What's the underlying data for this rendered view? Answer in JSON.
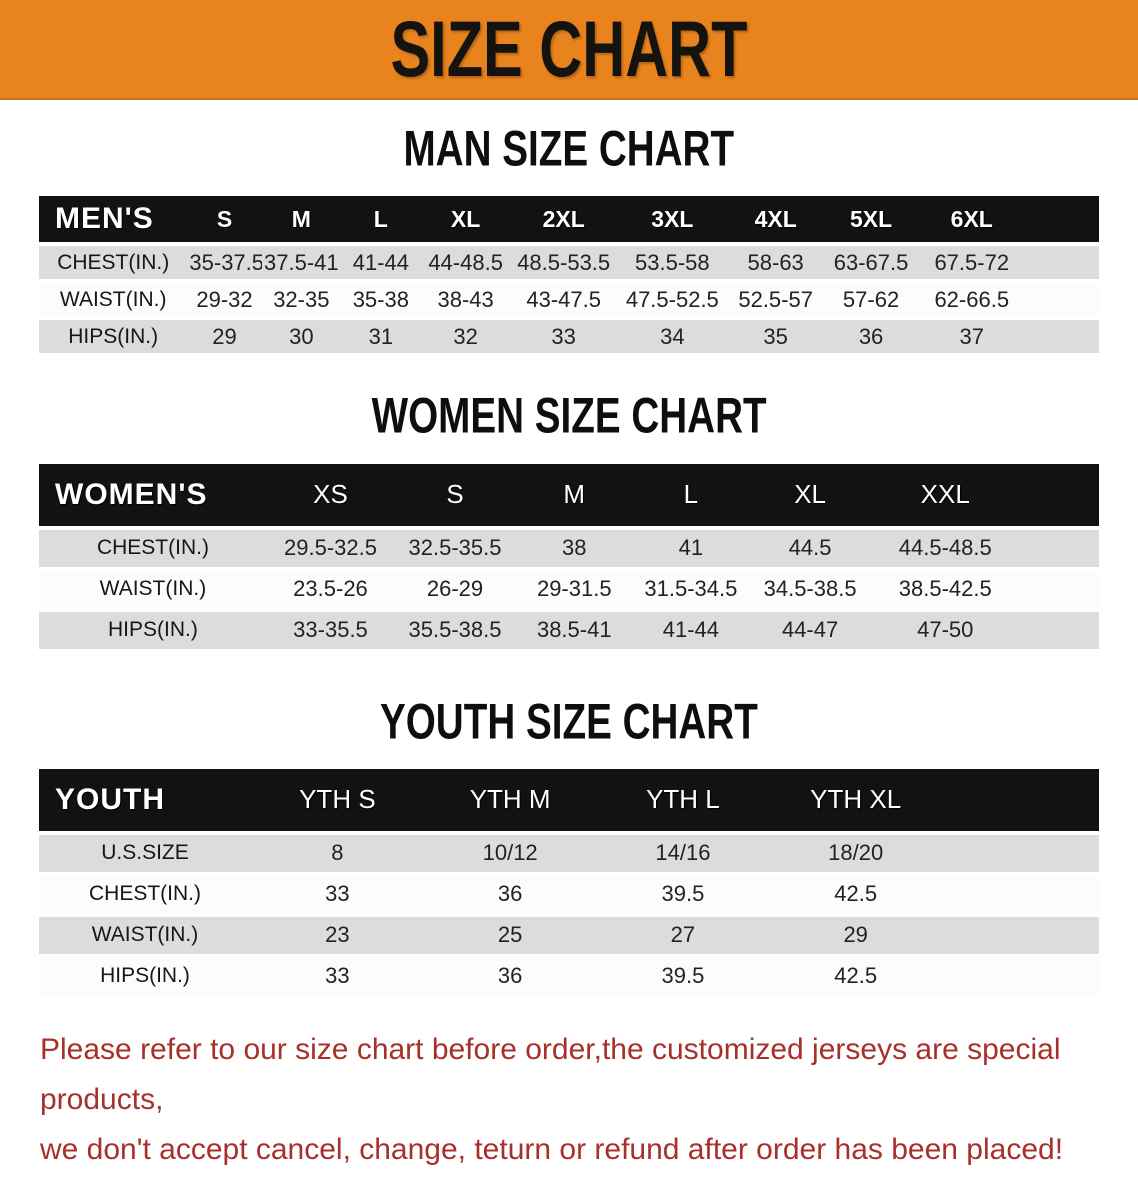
{
  "banner": {
    "title": "SIZE CHART"
  },
  "sections": [
    {
      "heading": "MAN SIZE CHART",
      "table": {
        "header": [
          "MEN'S",
          "S",
          "M",
          "L",
          "XL",
          "2XL",
          "3XL",
          "4XL",
          "5XL",
          "6XL"
        ],
        "rows": [
          {
            "label": "CHEST(IN.)",
            "values": [
              "35-37.5",
              "37.5-41",
              "41-44",
              "44-48.5",
              "48.5-53.5",
              "53.5-58",
              "58-63",
              "63-67.5",
              "67.5-72"
            ]
          },
          {
            "label": "WAIST(IN.)",
            "values": [
              "29-32",
              "32-35",
              "35-38",
              "38-43",
              "43-47.5",
              "47.5-52.5",
              "52.5-57",
              "57-62",
              "62-66.5"
            ]
          },
          {
            "label": "HIPS(IN.)",
            "values": [
              "29",
              "30",
              "31",
              "32",
              "33",
              "34",
              "35",
              "36",
              "37"
            ]
          }
        ]
      }
    },
    {
      "heading": "WOMEN SIZE CHART",
      "table": {
        "header": [
          "WOMEN'S",
          "XS",
          "S",
          "M",
          "L",
          "XL",
          "XXL"
        ],
        "rows": [
          {
            "label": "CHEST(IN.)",
            "values": [
              "29.5-32.5",
              "32.5-35.5",
              "38",
              "41",
              "44.5",
              "44.5-48.5"
            ]
          },
          {
            "label": "WAIST(IN.)",
            "values": [
              "23.5-26",
              "26-29",
              "29-31.5",
              "31.5-34.5",
              "34.5-38.5",
              "38.5-42.5"
            ]
          },
          {
            "label": "HIPS(IN.)",
            "values": [
              "33-35.5",
              "35.5-38.5",
              "38.5-41",
              "41-44",
              "44-47",
              "47-50"
            ]
          }
        ]
      }
    },
    {
      "heading": "YOUTH SIZE CHART",
      "table": {
        "header": [
          "YOUTH",
          "YTH S",
          "YTH M",
          "YTH L",
          "YTH XL"
        ],
        "rows": [
          {
            "label": "U.S.SIZE",
            "values": [
              "8",
              "10/12",
              "14/16",
              "18/20"
            ]
          },
          {
            "label": "CHEST(IN.)",
            "values": [
              "33",
              "36",
              "39.5",
              "42.5"
            ]
          },
          {
            "label": "WAIST(IN.)",
            "values": [
              "23",
              "25",
              "27",
              "29"
            ]
          },
          {
            "label": "HIPS(IN.)",
            "values": [
              "33",
              "36",
              "39.5",
              "42.5"
            ]
          }
        ]
      }
    }
  ],
  "note": {
    "line1": "Please refer to our size chart before order,the customized jerseys are special products,",
    "line2": "we don't accept cancel, change, teturn or refund after order has been placed!"
  },
  "colors": {
    "banner_bg": "#E8831E",
    "header_bar": "#121212",
    "row_gray": "#DCDCDC",
    "row_white": "#FCFCFC",
    "note_red": "#A8302B"
  }
}
